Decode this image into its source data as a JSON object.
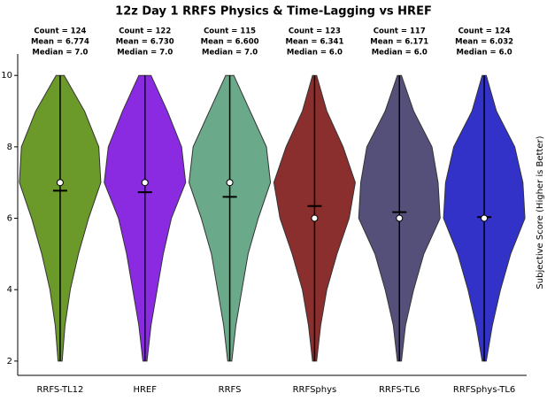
{
  "chart_data": {
    "type": "violin",
    "title": "12z Day 1 RRFS Physics & Time-Lagging vs HREF",
    "y_label": "Subjective Score (Higher is Better)",
    "categories": [
      "RRFS-TL12",
      "HREF",
      "RRFS",
      "RRFSphys",
      "RRFS-TL6",
      "RRFSphys-TL6"
    ],
    "annotations": [
      [
        "Count = 124",
        "Mean = 6.774",
        "Median = 7.0"
      ],
      [
        "Count = 122",
        "Mean = 6.730",
        "Median = 7.0"
      ],
      [
        "Count = 115",
        "Mean = 6.600",
        "Median = 7.0"
      ],
      [
        "Count = 123",
        "Mean = 6.341",
        "Median = 6.0"
      ],
      [
        "Count = 117",
        "Mean = 6.171",
        "Median = 6.0"
      ],
      [
        "Count = 124",
        "Mean = 6.032",
        "Median = 6.0"
      ]
    ],
    "medians": [
      7,
      7,
      7,
      6,
      6,
      6
    ],
    "means": [
      6.774,
      6.73,
      6.6,
      6.341,
      6.171,
      6.032
    ],
    "density_levels": [
      10,
      9,
      8,
      7,
      6,
      5,
      4,
      3,
      2
    ],
    "series": [
      {
        "color": "#6b9a2a",
        "density": [
          0.1,
          0.6,
          0.95,
          1.0,
          0.7,
          0.45,
          0.25,
          0.12,
          0.05
        ]
      },
      {
        "color": "#8a2be2",
        "density": [
          0.15,
          0.55,
          0.9,
          1.0,
          0.65,
          0.45,
          0.3,
          0.15,
          0.05
        ]
      },
      {
        "color": "#6aaa8a",
        "density": [
          0.1,
          0.5,
          0.9,
          1.0,
          0.7,
          0.45,
          0.3,
          0.15,
          0.05
        ]
      },
      {
        "color": "#8b2e2e",
        "density": [
          0.05,
          0.3,
          0.7,
          1.0,
          0.85,
          0.55,
          0.3,
          0.15,
          0.05
        ]
      },
      {
        "color": "#55507a",
        "density": [
          0.05,
          0.35,
          0.8,
          0.95,
          1.0,
          0.6,
          0.35,
          0.15,
          0.05
        ]
      },
      {
        "color": "#3232c8",
        "density": [
          0.05,
          0.3,
          0.75,
          0.95,
          1.0,
          0.65,
          0.4,
          0.2,
          0.05
        ]
      }
    ],
    "ylim": [
      1.6,
      10.6
    ],
    "yticks": [
      2,
      4,
      6,
      8,
      10
    ]
  }
}
